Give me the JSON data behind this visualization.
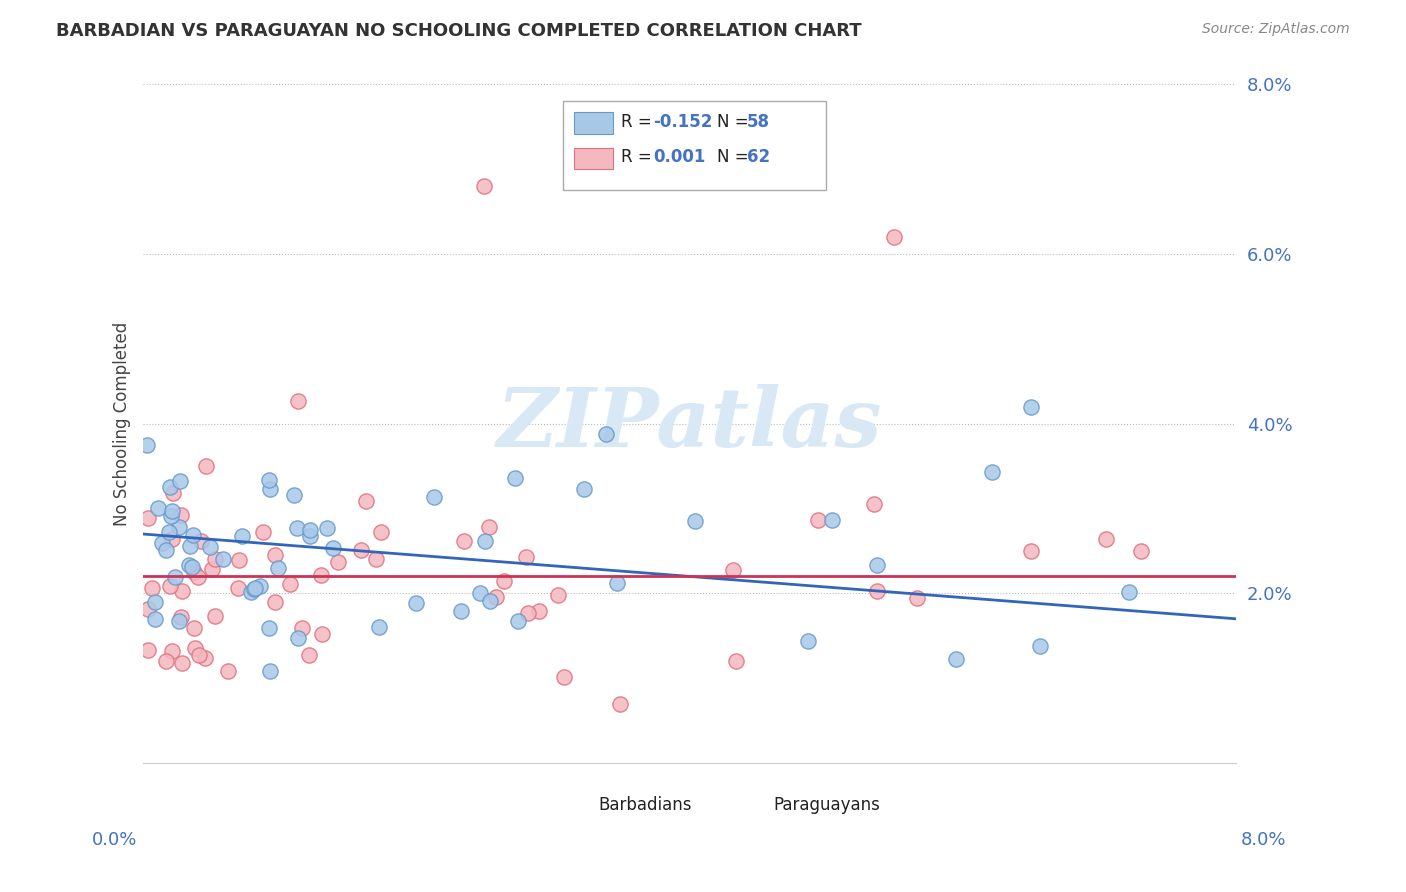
{
  "title": "BARBADIAN VS PARAGUAYAN NO SCHOOLING COMPLETED CORRELATION CHART",
  "source": "Source: ZipAtlas.com",
  "ylabel": "No Schooling Completed",
  "barbadians_label": "Barbadians",
  "paraguayans_label": "Paraguayans",
  "blue_color": "#a8c8e8",
  "blue_edge_color": "#6699cc",
  "pink_color": "#f4b8c0",
  "pink_edge_color": "#e07080",
  "blue_line_color": "#3366bb",
  "pink_line_color": "#cc3355",
  "watermark_color": "#d8e8f4",
  "legend_r_blue": "-0.152",
  "legend_n_blue": "58",
  "legend_r_pink": "0.001",
  "legend_n_pink": "62",
  "xmin": 0.0,
  "xmax": 0.08,
  "ymin": 0.0,
  "ymax": 0.08,
  "ytick_values": [
    0.02,
    0.04,
    0.06,
    0.08
  ],
  "ytick_labels": [
    "2.0%",
    "4.0%",
    "6.0%",
    "8.0%"
  ],
  "blue_trend_y0": 0.027,
  "blue_trend_y1": 0.017,
  "pink_trend_y0": 0.022,
  "pink_trend_y1": 0.022
}
